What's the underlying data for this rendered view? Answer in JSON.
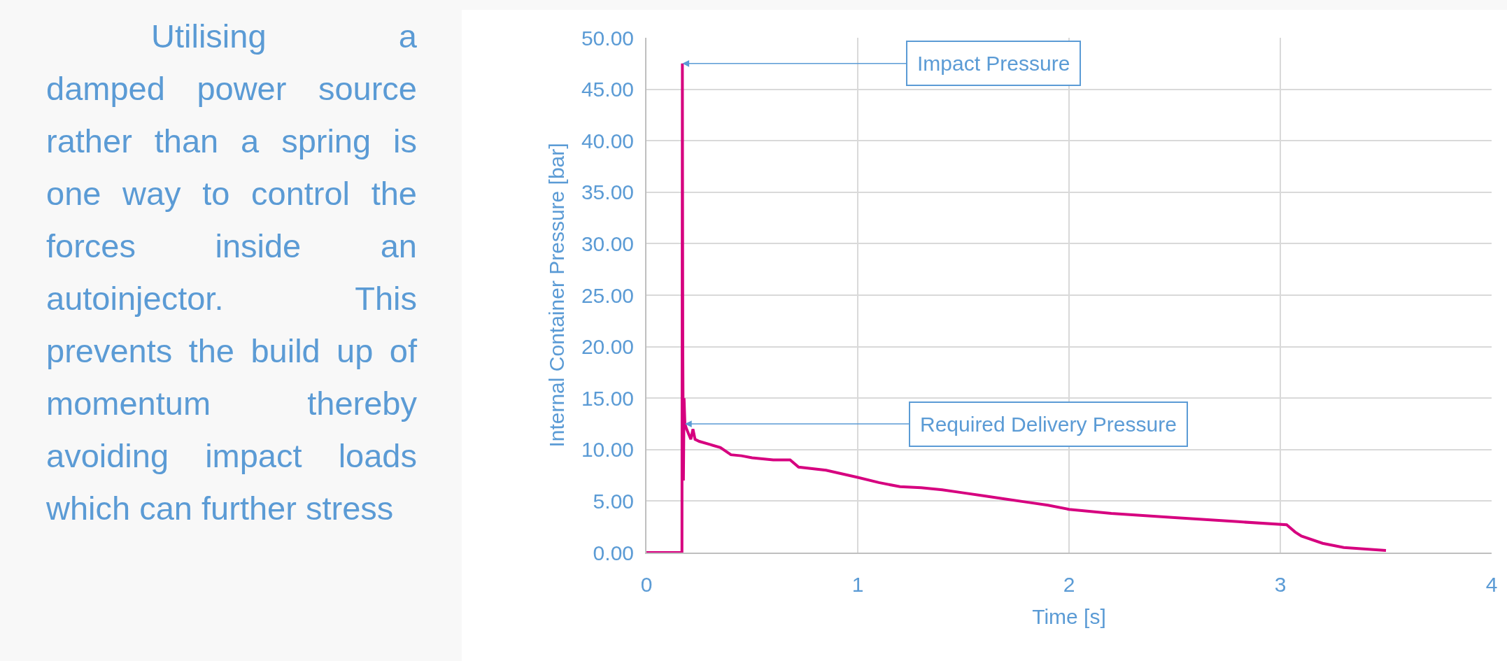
{
  "chart_data": {
    "type": "line",
    "xlabel": "Time [s]",
    "ylabel": "Internal Container Pressure [bar]",
    "x": [
      0,
      0.1,
      0.168,
      0.17,
      0.172,
      0.175,
      0.178,
      0.182,
      0.19,
      0.2,
      0.21,
      0.22,
      0.23,
      0.25,
      0.3,
      0.35,
      0.4,
      0.45,
      0.5,
      0.6,
      0.68,
      0.72,
      0.85,
      1.0,
      1.1,
      1.2,
      1.3,
      1.4,
      1.5,
      1.6,
      1.7,
      1.8,
      1.9,
      2.0,
      2.2,
      2.5,
      2.8,
      3.03,
      3.07,
      3.1,
      3.2,
      3.3,
      3.5
    ],
    "series": [
      {
        "color": "#d6007f",
        "values": [
          0,
          0,
          0,
          47.5,
          20,
          7,
          15,
          12.5,
          12,
          11.5,
          11,
          12,
          11,
          10.8,
          10.5,
          10.2,
          9.5,
          9.4,
          9.2,
          9.0,
          9.0,
          8.3,
          8.0,
          7.3,
          6.8,
          6.4,
          6.3,
          6.1,
          5.8,
          5.5,
          5.2,
          4.9,
          4.6,
          4.2,
          3.8,
          3.4,
          3.0,
          2.7,
          2.0,
          1.6,
          0.9,
          0.5,
          0.2
        ]
      }
    ],
    "xlim": [
      0,
      4
    ],
    "xticks": [
      0,
      1,
      2,
      3,
      4
    ],
    "ylim": [
      0,
      50
    ],
    "yticks": [
      {
        "value": 0,
        "label": "0.00"
      },
      {
        "value": 5,
        "label": "5.00"
      },
      {
        "value": 10,
        "label": "10.00"
      },
      {
        "value": 15,
        "label": "15.00"
      },
      {
        "value": 20,
        "label": "20.00"
      },
      {
        "value": 25,
        "label": "25.00"
      },
      {
        "value": 30,
        "label": "30.00"
      },
      {
        "value": 35,
        "label": "35.00"
      },
      {
        "value": 40,
        "label": "40.00"
      },
      {
        "value": 45,
        "label": "45.00"
      },
      {
        "value": 50,
        "label": "50.00"
      }
    ],
    "grid": true,
    "marker": "none",
    "line_style": "solid",
    "annotations": [
      "Utilising a damped power source rather than a spring is one way to control the forces inside an autoinjector. This prevents the build up of momentum thereby avoiding impact loads which can further stress",
      {
        "text": "Impact Pressure",
        "x": 0.17,
        "y": 47.5
      },
      {
        "text": "Required Delivery Pressure",
        "x": 0.182,
        "y": 12.5
      }
    ]
  }
}
